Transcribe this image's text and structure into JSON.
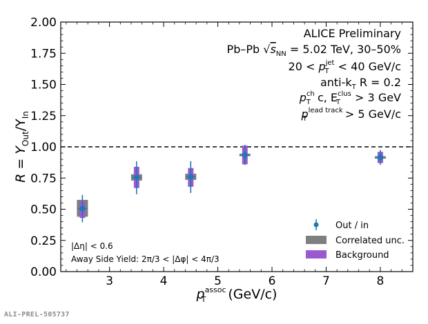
{
  "footer_label": "ALI-PREL-505737",
  "annotations": {
    "line1": "ALICE Preliminary",
    "line2_prefix": "Pb–Pb ",
    "line2_sqrt": "s",
    "line2_sub": "NN",
    "line2_suffix": " = 5.02 TeV, 30–50%",
    "line3_pre": "20 < ",
    "line3_p": "p",
    "line3_sup": "jet",
    "line3_sub": "T",
    "line3_post": " < 40 GeV/c",
    "line4_pre": "anti-k",
    "line4_sub": "T",
    "line4_post": " R = 0.2",
    "line5_p": "p",
    "line5_sup": "ch",
    "line5_sub": "T",
    "line5_mid": " c, E",
    "line5_sup2": "clus",
    "line5_sub2": "T",
    "line5_post": " > 3 GeV",
    "line6_p": "p",
    "line6_sup": "lead track",
    "line6_sub": "T",
    "line6_post": " > 5 GeV/c",
    "cut1": "|Δη| < 0.6",
    "cut2": "Away Side Yield: 2π/3 < |Δφ| < 4π/3"
  },
  "legend": {
    "out_in": "Out / in",
    "correlated": "Correlated unc.",
    "background": "Background"
  },
  "colors": {
    "points": "#1f77b4",
    "correlated": "#7f7f7f",
    "background": "#9b59d0",
    "reference_line": "#000000"
  },
  "chart_data": {
    "type": "scatter",
    "xlabel_main": "p",
    "xlabel_sup": "assoc",
    "xlabel_sub": "T",
    "xlabel_unit": " (GeV/c)",
    "ylabel_main": "R = Y",
    "ylabel_sub1": "Out",
    "ylabel_mid": "/Y",
    "ylabel_sub2": "In",
    "xlim": [
      2.1,
      8.6
    ],
    "ylim": [
      0.0,
      2.0
    ],
    "x_ticks": [
      3,
      4,
      5,
      6,
      7,
      8
    ],
    "y_ticks": [
      "0.00",
      "0.25",
      "0.50",
      "0.75",
      "1.00",
      "1.25",
      "1.50",
      "1.75",
      "2.00"
    ],
    "reference_line": 1.0,
    "grid": false,
    "legend_position": "lower-right",
    "series": [
      {
        "name": "Out / in",
        "points": [
          {
            "x": 2.5,
            "y": 0.505,
            "stat_lo": 0.395,
            "stat_hi": 0.615,
            "corr_lo": 0.44,
            "corr_hi": 0.575,
            "bkg_lo": 0.43,
            "bkg_hi": 0.56
          },
          {
            "x": 3.5,
            "y": 0.755,
            "stat_lo": 0.62,
            "stat_hi": 0.885,
            "corr_lo": 0.73,
            "corr_hi": 0.78,
            "bkg_lo": 0.67,
            "bkg_hi": 0.84
          },
          {
            "x": 4.5,
            "y": 0.76,
            "stat_lo": 0.63,
            "stat_hi": 0.885,
            "corr_lo": 0.735,
            "corr_hi": 0.785,
            "bkg_lo": 0.68,
            "bkg_hi": 0.83
          },
          {
            "x": 5.5,
            "y": 0.935,
            "stat_lo": 0.855,
            "stat_hi": 1.015,
            "corr_lo": 0.925,
            "corr_hi": 0.945,
            "bkg_lo": 0.86,
            "bkg_hi": 1.01
          },
          {
            "x": 8.0,
            "y": 0.915,
            "stat_lo": 0.855,
            "stat_hi": 0.975,
            "corr_lo": 0.905,
            "corr_hi": 0.925,
            "bkg_lo": 0.87,
            "bkg_hi": 0.96
          }
        ]
      }
    ]
  }
}
